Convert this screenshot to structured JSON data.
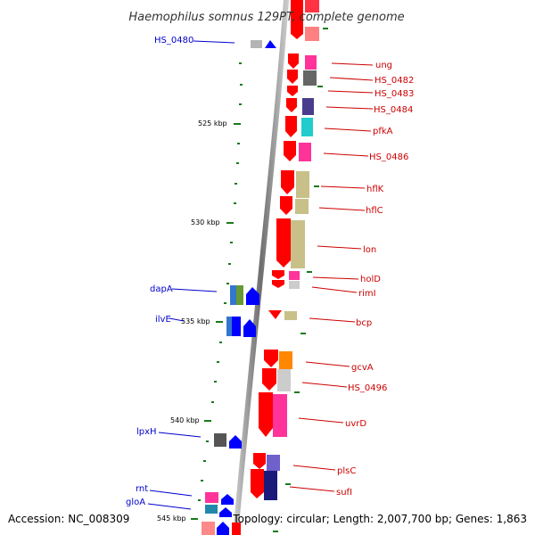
{
  "title": "Haemophilus somnus 129PT, complete genome",
  "footer": {
    "accession": "Accession: NC_008309",
    "summary": "Topology: circular; Length: 2,007,700 bp; Genes: 1,863"
  },
  "ruler_labels": [
    "525 kbp",
    "530 kbp",
    "535 kbp",
    "540 kbp",
    "545 kbp"
  ],
  "genes_right": [
    "ung",
    "HS_0482",
    "HS_0483",
    "HS_0484",
    "pfkA",
    "HS_0486",
    "hflK",
    "hflC",
    "lon",
    "holD",
    "rimI",
    "bcp",
    "gcvA",
    "HS_0496",
    "uvrD",
    "plsC",
    "sufI"
  ],
  "genes_left": [
    "HS_0480",
    "dapA",
    "ilvE",
    "lpxH",
    "rnt",
    "gloA"
  ],
  "colors": {
    "forward_gene": "#ff0000",
    "reverse_gene": "#0000ff",
    "label_forward": "#cc0000",
    "label_reverse": "#0000cc",
    "backbone": "#888888",
    "tick": "#1a7a1a"
  }
}
